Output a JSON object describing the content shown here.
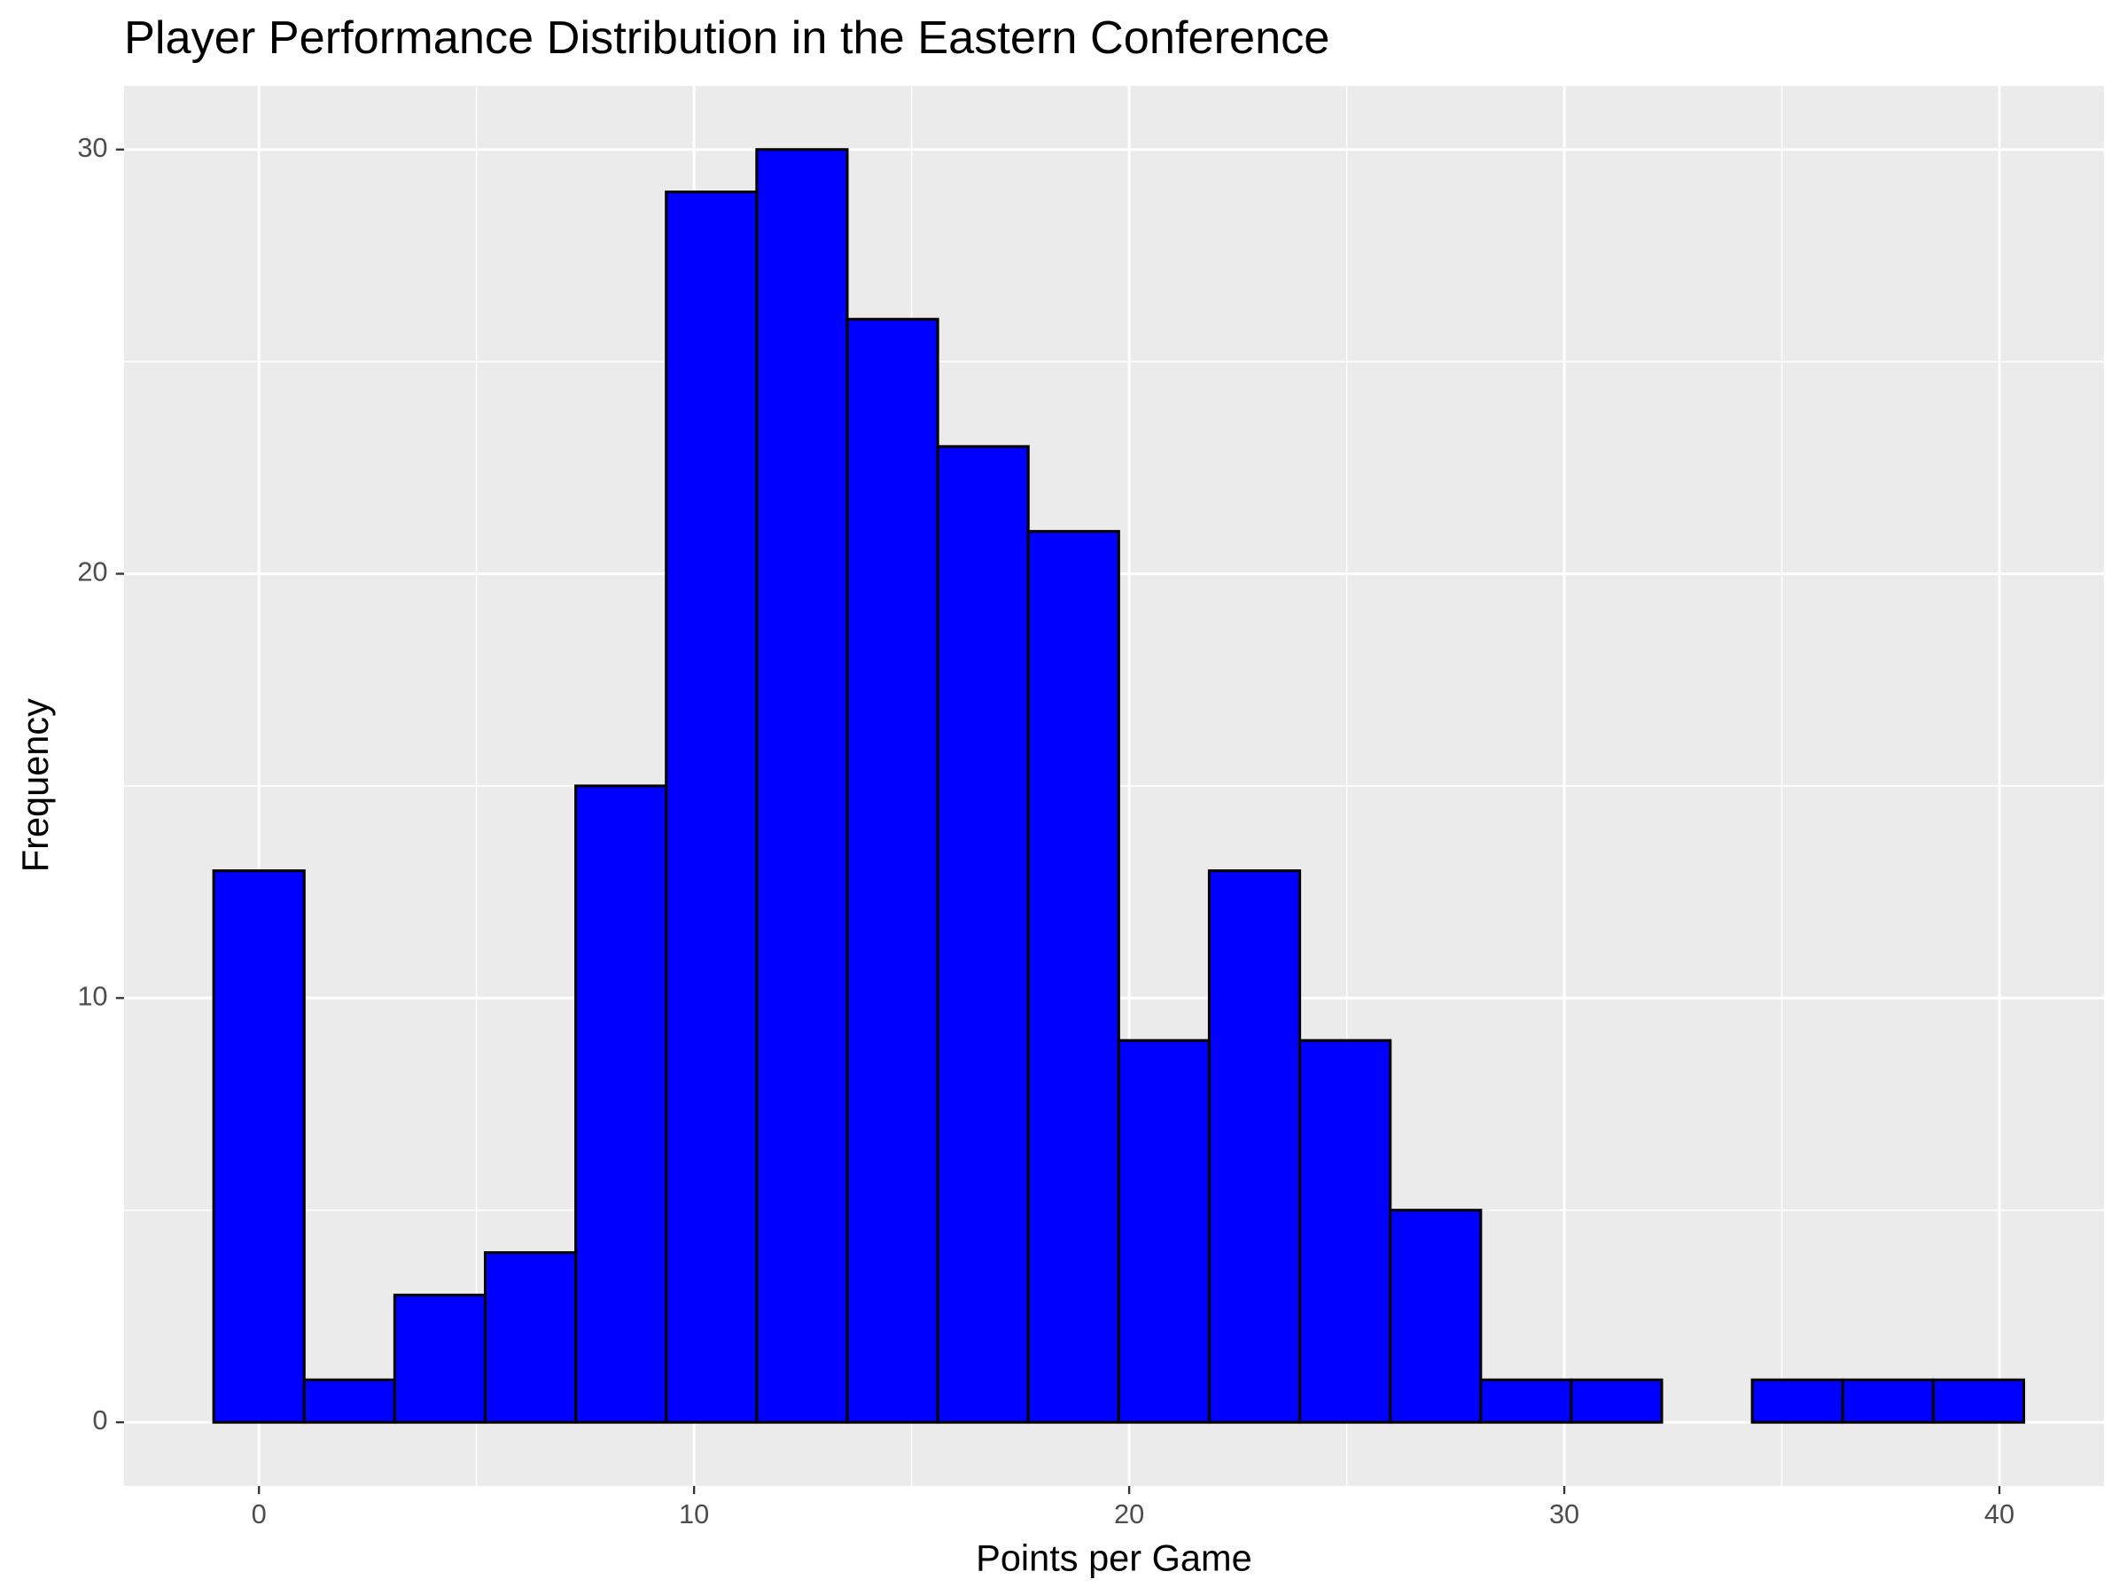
{
  "chart_data": {
    "type": "histogram",
    "title": "Player Performance Distribution in the Eastern Conference",
    "x_label": "Points per Game",
    "y_label": "Frequency",
    "bins": [
      -1.04,
      1.04,
      3.12,
      5.2,
      7.28,
      9.36,
      11.44,
      13.52,
      15.6,
      17.68,
      19.76,
      21.84,
      23.92,
      26,
      28.08,
      30.16,
      32.24,
      34.32,
      36.4,
      38.48,
      40.56
    ],
    "values": [
      13,
      1,
      3,
      4,
      15,
      29,
      30,
      26,
      23,
      21,
      9,
      13,
      9,
      5,
      1,
      1,
      0,
      1,
      1,
      1
    ],
    "color": "#0000ff",
    "edge_color": "#000000",
    "xlim": [
      -3.1,
      42.4
    ],
    "ylim": [
      -1.5,
      31.5
    ],
    "xticks": [
      0,
      10,
      20,
      30,
      40
    ],
    "yticks": [
      0,
      10,
      20,
      30
    ],
    "x_minor_ticks": [
      5,
      15,
      25,
      35
    ],
    "y_minor_ticks": [
      5,
      15,
      25
    ],
    "grid": true
  }
}
